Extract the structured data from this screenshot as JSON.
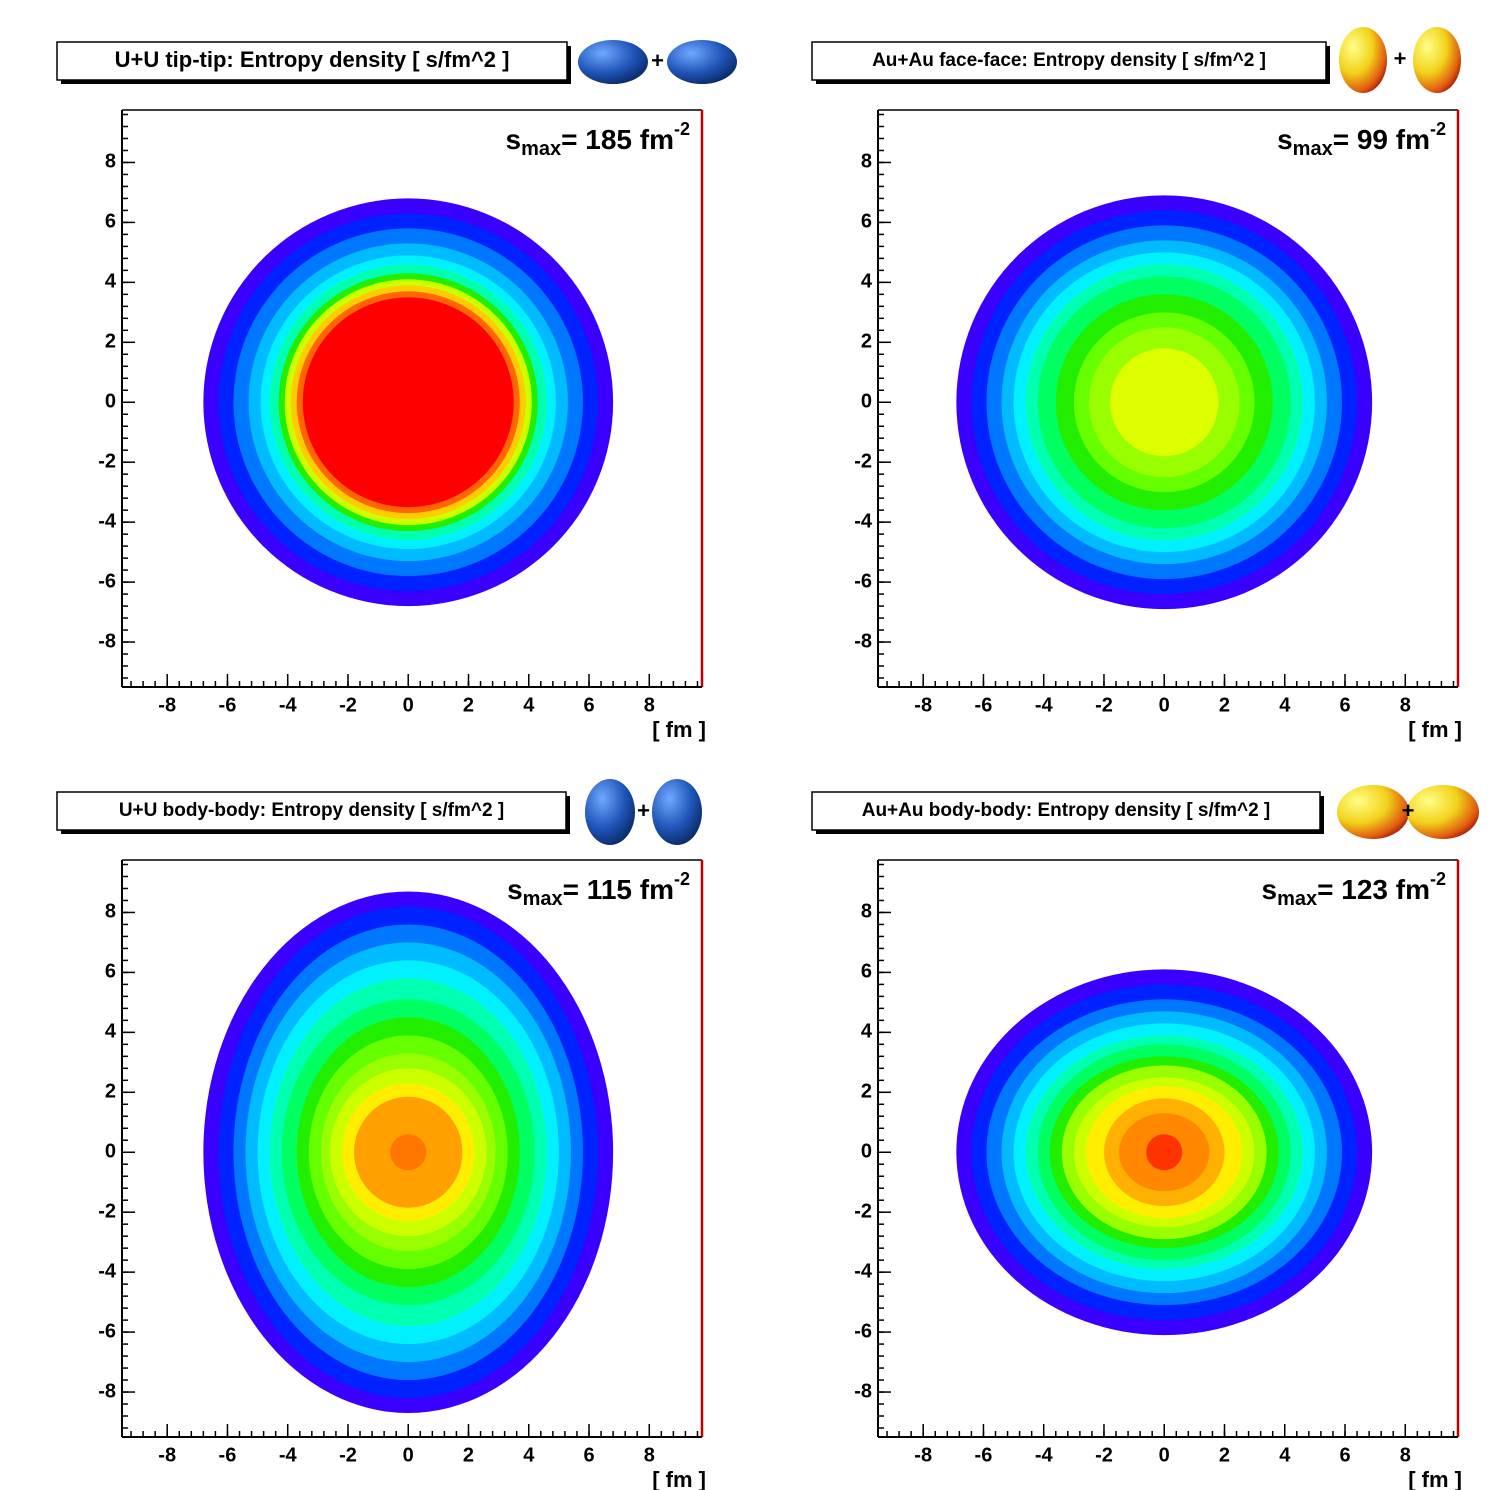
{
  "chart_data": [
    {
      "type": "contour",
      "title": "U+U tip-tip: Entropy density [ s/fm^2 ]",
      "icon_joiner": "+",
      "annotation": {
        "base": "s",
        "sub": "max",
        "text": "= 185 fm",
        "sup": "-2"
      },
      "x_label": "[ fm ]",
      "xlim": [
        -9.5,
        9.75
      ],
      "ylim": [
        -9.5,
        9.75
      ],
      "xticks": [
        -8,
        -6,
        -4,
        -2,
        0,
        2,
        4,
        6,
        8
      ],
      "yticks": [
        -8,
        -6,
        -4,
        -2,
        0,
        2,
        4,
        6,
        8
      ],
      "contours": [
        {
          "color": "#3a00ff",
          "x": [
            -6.8,
            6.8
          ],
          "y": [
            -6.8,
            6.8
          ]
        },
        {
          "color": "#0022ff",
          "x": [
            -6.3,
            6.3
          ],
          "y": [
            -6.3,
            6.3
          ]
        },
        {
          "color": "#0077ff",
          "x": [
            -5.8,
            5.8
          ],
          "y": [
            -5.8,
            5.8
          ]
        },
        {
          "color": "#00bbff",
          "x": [
            -5.3,
            5.3
          ],
          "y": [
            -5.3,
            5.3
          ]
        },
        {
          "color": "#00f0ff",
          "x": [
            -4.9,
            4.9
          ],
          "y": [
            -4.9,
            4.9
          ]
        },
        {
          "color": "#00ffb0",
          "x": [
            -4.6,
            4.6
          ],
          "y": [
            -4.6,
            4.6
          ]
        },
        {
          "color": "#22ee00",
          "x": [
            -4.3,
            4.3
          ],
          "y": [
            -4.3,
            4.3
          ]
        },
        {
          "color": "#ccff00",
          "x": [
            -4.1,
            4.1
          ],
          "y": [
            -4.1,
            4.1
          ]
        },
        {
          "color": "#ffcc00",
          "x": [
            -3.9,
            3.9
          ],
          "y": [
            -3.9,
            3.9
          ]
        },
        {
          "color": "#ff6600",
          "x": [
            -3.7,
            3.7
          ],
          "y": [
            -3.7,
            3.7
          ]
        },
        {
          "color": "#ff0000",
          "x": [
            -3.5,
            3.5
          ],
          "y": [
            -3.5,
            3.5
          ]
        }
      ]
    },
    {
      "type": "contour",
      "title": "Au+Au face-face: Entropy density [ s/fm^2 ]",
      "icon_joiner": "+",
      "annotation": {
        "base": "s",
        "sub": "max",
        "text": "= 99 fm",
        "sup": "-2"
      },
      "x_label": "[ fm ]",
      "xlim": [
        -9.5,
        9.75
      ],
      "ylim": [
        -9.5,
        9.75
      ],
      "xticks": [
        -8,
        -6,
        -4,
        -2,
        0,
        2,
        4,
        6,
        8
      ],
      "yticks": [
        -8,
        -6,
        -4,
        -2,
        0,
        2,
        4,
        6,
        8
      ],
      "contours": [
        {
          "color": "#3a00ff",
          "x": [
            -6.9,
            6.9
          ],
          "y": [
            -6.9,
            6.9
          ]
        },
        {
          "color": "#0022ff",
          "x": [
            -6.4,
            6.4
          ],
          "y": [
            -6.4,
            6.4
          ]
        },
        {
          "color": "#0077ff",
          "x": [
            -5.9,
            5.9
          ],
          "y": [
            -5.9,
            5.9
          ]
        },
        {
          "color": "#00bbff",
          "x": [
            -5.4,
            5.4
          ],
          "y": [
            -5.4,
            5.4
          ]
        },
        {
          "color": "#00f0ff",
          "x": [
            -5.0,
            5.0
          ],
          "y": [
            -5.0,
            5.0
          ]
        },
        {
          "color": "#00ffb0",
          "x": [
            -4.6,
            4.6
          ],
          "y": [
            -4.6,
            4.6
          ]
        },
        {
          "color": "#00ff60",
          "x": [
            -4.2,
            4.2
          ],
          "y": [
            -4.2,
            4.2
          ]
        },
        {
          "color": "#22ee00",
          "x": [
            -3.6,
            3.6
          ],
          "y": [
            -3.6,
            3.6
          ]
        },
        {
          "color": "#66ff00",
          "x": [
            -3.0,
            3.0
          ],
          "y": [
            -3.0,
            3.0
          ]
        },
        {
          "color": "#99ff00",
          "x": [
            -2.5,
            2.5
          ],
          "y": [
            -2.5,
            2.5
          ]
        },
        {
          "color": "#ddff00",
          "x": [
            -1.8,
            1.8
          ],
          "y": [
            -1.8,
            1.8
          ]
        }
      ]
    },
    {
      "type": "contour",
      "title": "U+U body-body: Entropy density [ s/fm^2 ]",
      "icon_joiner": "+",
      "annotation": {
        "base": "s",
        "sub": "max",
        "text": "= 115 fm",
        "sup": "-2"
      },
      "x_label": "[ fm ]",
      "xlim": [
        -9.5,
        9.75
      ],
      "ylim": [
        -9.5,
        9.75
      ],
      "xticks": [
        -8,
        -6,
        -4,
        -2,
        0,
        2,
        4,
        6,
        8
      ],
      "yticks": [
        -8,
        -6,
        -4,
        -2,
        0,
        2,
        4,
        6,
        8
      ],
      "contours": [
        {
          "color": "#3a00ff",
          "x": [
            -6.8,
            6.8
          ],
          "y": [
            -8.7,
            8.7
          ]
        },
        {
          "color": "#0022ff",
          "x": [
            -6.3,
            6.3
          ],
          "y": [
            -8.2,
            8.2
          ]
        },
        {
          "color": "#0077ff",
          "x": [
            -5.8,
            5.8
          ],
          "y": [
            -7.6,
            7.6
          ]
        },
        {
          "color": "#00bbff",
          "x": [
            -5.4,
            5.4
          ],
          "y": [
            -7.0,
            7.0
          ]
        },
        {
          "color": "#00f0ff",
          "x": [
            -5.0,
            5.0
          ],
          "y": [
            -6.4,
            6.4
          ]
        },
        {
          "color": "#00ffb0",
          "x": [
            -4.6,
            4.6
          ],
          "y": [
            -5.8,
            5.8
          ]
        },
        {
          "color": "#00ff60",
          "x": [
            -4.2,
            4.2
          ],
          "y": [
            -5.1,
            5.1
          ]
        },
        {
          "color": "#22ee00",
          "x": [
            -3.7,
            3.7
          ],
          "y": [
            -4.5,
            4.5
          ]
        },
        {
          "color": "#66ff00",
          "x": [
            -3.3,
            3.3
          ],
          "y": [
            -3.9,
            3.9
          ]
        },
        {
          "color": "#99ff00",
          "x": [
            -2.9,
            2.9
          ],
          "y": [
            -3.3,
            3.3
          ]
        },
        {
          "color": "#ccff00",
          "x": [
            -2.6,
            2.6
          ],
          "y": [
            -2.8,
            2.8
          ]
        },
        {
          "color": "#ffee00",
          "x": [
            -2.2,
            2.2
          ],
          "y": [
            -2.3,
            2.3
          ]
        },
        {
          "color": "#ffa000",
          "x": [
            -1.8,
            1.8
          ],
          "y": [
            -1.85,
            1.85
          ]
        },
        {
          "color": "#ff7700",
          "x": [
            -0.6,
            0.6
          ],
          "y": [
            -0.6,
            0.6
          ]
        }
      ]
    },
    {
      "type": "contour",
      "title": "Au+Au body-body: Entropy density [ s/fm^2 ]",
      "icon_joiner": "+",
      "annotation": {
        "base": "s",
        "sub": "max",
        "text": "= 123 fm",
        "sup": "-2"
      },
      "x_label": "[ fm ]",
      "xlim": [
        -9.5,
        9.75
      ],
      "ylim": [
        -9.5,
        9.75
      ],
      "xticks": [
        -8,
        -6,
        -4,
        -2,
        0,
        2,
        4,
        6,
        8
      ],
      "yticks": [
        -8,
        -6,
        -4,
        -2,
        0,
        2,
        4,
        6,
        8
      ],
      "contours": [
        {
          "color": "#3a00ff",
          "x": [
            -6.9,
            6.9
          ],
          "y": [
            -6.1,
            6.1
          ]
        },
        {
          "color": "#0022ff",
          "x": [
            -6.4,
            6.4
          ],
          "y": [
            -5.6,
            5.6
          ]
        },
        {
          "color": "#0077ff",
          "x": [
            -5.9,
            5.9
          ],
          "y": [
            -5.1,
            5.1
          ]
        },
        {
          "color": "#00bbff",
          "x": [
            -5.4,
            5.4
          ],
          "y": [
            -4.7,
            4.7
          ]
        },
        {
          "color": "#00f0ff",
          "x": [
            -5.0,
            5.0
          ],
          "y": [
            -4.3,
            4.3
          ]
        },
        {
          "color": "#00ffb0",
          "x": [
            -4.6,
            4.6
          ],
          "y": [
            -3.9,
            3.9
          ]
        },
        {
          "color": "#00ff60",
          "x": [
            -4.2,
            4.2
          ],
          "y": [
            -3.6,
            3.6
          ]
        },
        {
          "color": "#22ee00",
          "x": [
            -3.8,
            3.8
          ],
          "y": [
            -3.2,
            3.2
          ]
        },
        {
          "color": "#99ff00",
          "x": [
            -3.4,
            3.4
          ],
          "y": [
            -2.9,
            2.9
          ]
        },
        {
          "color": "#ccff00",
          "x": [
            -3.0,
            3.0
          ],
          "y": [
            -2.5,
            2.5
          ]
        },
        {
          "color": "#ffee00",
          "x": [
            -2.6,
            2.6
          ],
          "y": [
            -2.2,
            2.2
          ]
        },
        {
          "color": "#ffb000",
          "x": [
            -2.0,
            2.0
          ],
          "y": [
            -1.8,
            1.8
          ]
        },
        {
          "color": "#ff8800",
          "x": [
            -1.5,
            1.5
          ],
          "y": [
            -1.3,
            1.3
          ]
        },
        {
          "color": "#ff3300",
          "x": [
            -0.6,
            0.6
          ],
          "y": [
            -0.6,
            0.6
          ]
        }
      ]
    }
  ]
}
